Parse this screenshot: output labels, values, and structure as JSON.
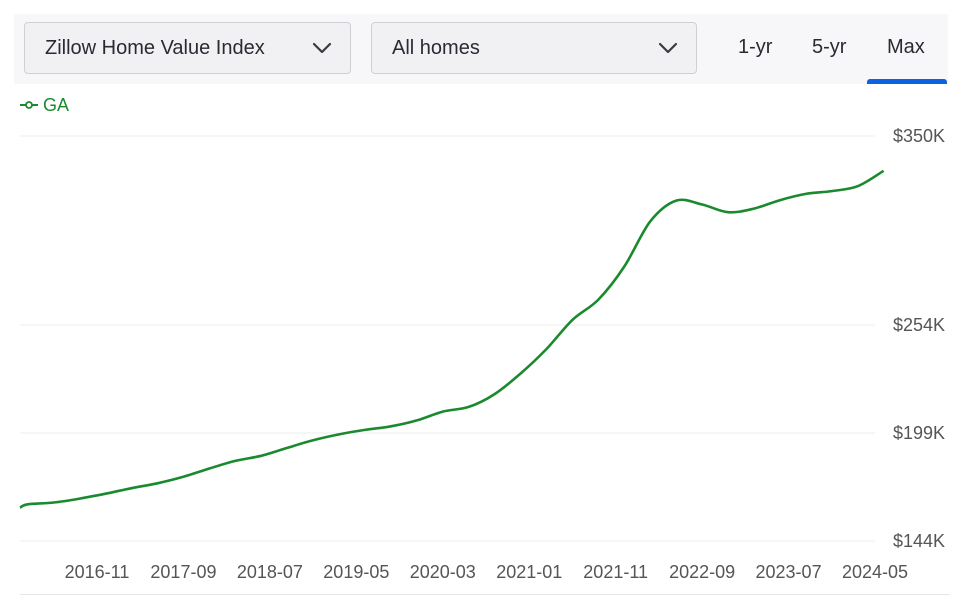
{
  "controls": {
    "metric_select": {
      "value": "Zillow Home Value Index"
    },
    "home_type_select": {
      "value": "All homes"
    },
    "ranges": [
      "1-yr",
      "5-yr",
      "Max"
    ],
    "active_range": "Max"
  },
  "colors": {
    "series": "#1b8a2f",
    "accent": "#0d62e2",
    "grid": "#ececec",
    "text": "#555555"
  },
  "chart_data": {
    "type": "line",
    "title": "",
    "xlabel": "",
    "ylabel": "",
    "x_tick_labels": [
      "2016-11",
      "2017-09",
      "2018-07",
      "2019-05",
      "2020-03",
      "2021-01",
      "2021-11",
      "2022-09",
      "2023-07",
      "2024-05"
    ],
    "y_tick_labels": [
      "$350K",
      "$254K",
      "$199K",
      "$144K"
    ],
    "y_tick_values": [
      350000,
      254000,
      199000,
      144000
    ],
    "ylim": [
      144000,
      350000
    ],
    "legend_position": "top-left",
    "grid": true,
    "series": [
      {
        "name": "GA",
        "x": [
          "2015-12",
          "2016-03",
          "2016-06",
          "2016-09",
          "2016-12",
          "2017-03",
          "2017-06",
          "2017-09",
          "2017-12",
          "2018-03",
          "2018-06",
          "2018-09",
          "2018-12",
          "2019-03",
          "2019-06",
          "2019-09",
          "2019-12",
          "2020-03",
          "2020-06",
          "2020-09",
          "2020-12",
          "2021-03",
          "2021-06",
          "2021-09",
          "2021-12",
          "2022-03",
          "2022-06",
          "2022-09",
          "2022-12",
          "2023-03",
          "2023-06",
          "2023-09",
          "2023-12",
          "2024-03",
          "2024-06"
        ],
        "values": [
          161000,
          162700,
          163600,
          165600,
          168100,
          170900,
          173400,
          176700,
          180900,
          184800,
          187400,
          191400,
          195300,
          198300,
          200600,
          202400,
          205400,
          209900,
          212300,
          218800,
          229300,
          241800,
          256600,
          266900,
          283700,
          306600,
          317200,
          315200,
          311300,
          313100,
          317400,
          320600,
          322000,
          324500,
          332300
        ]
      }
    ]
  }
}
